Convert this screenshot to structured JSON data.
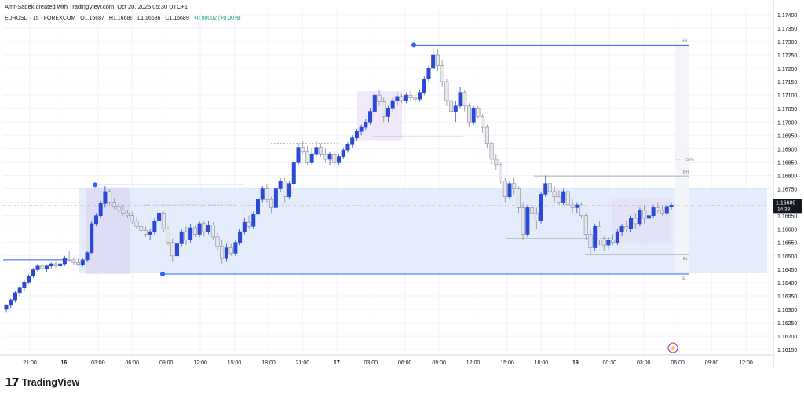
{
  "header": {
    "attribution": "Amr-Sadek created with TradingView.com, Oct 20, 2025 05:30 UTC+1",
    "symbol": "EURUSD · 15 · FOREXCOM",
    "open": "O1.16687",
    "high": "H1.16689",
    "low": "L1.16686",
    "close": "C1.16689",
    "change": "+0.00002 (+0.00%)"
  },
  "brand": {
    "logo": "17",
    "name": "TradingView"
  },
  "price_tag": {
    "price": "1.16689",
    "countdown": "14:33"
  },
  "colors": {
    "up": "#2a4ad6",
    "down": "#b5b8c0",
    "zone": "#dce7fb",
    "level": "#2962ff",
    "grid": "#f0f3fa",
    "text": "#131722",
    "muted": "#787b86",
    "price_tag_bg": "#131722"
  },
  "chart_data": {
    "type": "candlestick",
    "x_ticks": [
      "21:00",
      "16",
      "03:00",
      "06:00",
      "09:00",
      "12:00",
      "15:00",
      "18:00",
      "21:00",
      "17",
      "03:00",
      "06:00",
      "09:00",
      "12:00",
      "15:00",
      "18:00",
      "19",
      "00:30",
      "03:00",
      "06:00",
      "09:00",
      "12:00"
    ],
    "y_ticks": [
      "1.17400",
      "1.17350",
      "1.17300",
      "1.17250",
      "1.17200",
      "1.17150",
      "1.17100",
      "1.17050",
      "1.17000",
      "1.16950",
      "1.16900",
      "1.16850",
      "1.16800",
      "1.16750",
      "1.16700",
      "1.16650",
      "1.16600",
      "1.16550",
      "1.16500",
      "1.16450",
      "1.16400",
      "1.16350",
      "1.16300",
      "1.16250",
      "1.16200",
      "1.16150"
    ],
    "ylim": [
      1.1613,
      1.1742
    ],
    "last_price": 1.16689,
    "zone": {
      "top": 1.16755,
      "bottom": 1.16435
    },
    "levels": [
      {
        "label": "SH",
        "price": 1.17287
      },
      {
        "label": "BH",
        "price": 1.16798
      },
      {
        "label": "SL",
        "price": 1.16432
      },
      {
        "label": "EL",
        "price": 1.16505
      }
    ],
    "annotation": "50%",
    "candles": [
      [
        1.163,
        1.1632,
        1.1629,
        1.16315
      ],
      [
        1.16315,
        1.1634,
        1.16305,
        1.16335
      ],
      [
        1.16335,
        1.1637,
        1.16325,
        1.16362
      ],
      [
        1.16362,
        1.1639,
        1.1635,
        1.1638
      ],
      [
        1.1638,
        1.1641,
        1.1637,
        1.16402
      ],
      [
        1.16402,
        1.1643,
        1.16395,
        1.16425
      ],
      [
        1.16425,
        1.16455,
        1.16418,
        1.16448
      ],
      [
        1.16448,
        1.1647,
        1.1644,
        1.16462
      ],
      [
        1.16462,
        1.16472,
        1.16445,
        1.16452
      ],
      [
        1.16452,
        1.16468,
        1.1644,
        1.16462
      ],
      [
        1.16462,
        1.16475,
        1.1645,
        1.1647
      ],
      [
        1.1647,
        1.1648,
        1.16455,
        1.16462
      ],
      [
        1.16462,
        1.16478,
        1.16455,
        1.1647
      ],
      [
        1.1647,
        1.165,
        1.16462,
        1.16492
      ],
      [
        1.16492,
        1.16518,
        1.16478,
        1.16485
      ],
      [
        1.16485,
        1.16495,
        1.16465,
        1.16475
      ],
      [
        1.16475,
        1.1649,
        1.16462,
        1.16468
      ],
      [
        1.16468,
        1.1649,
        1.1646,
        1.16485
      ],
      [
        1.16485,
        1.1652,
        1.16478,
        1.16512
      ],
      [
        1.16512,
        1.1663,
        1.16505,
        1.1662
      ],
      [
        1.1662,
        1.1666,
        1.1661,
        1.1665
      ],
      [
        1.1665,
        1.16705,
        1.1664,
        1.16695
      ],
      [
        1.16695,
        1.1676,
        1.1668,
        1.1674
      ],
      [
        1.1674,
        1.16748,
        1.1669,
        1.167
      ],
      [
        1.167,
        1.16715,
        1.16675,
        1.16685
      ],
      [
        1.16685,
        1.167,
        1.1666,
        1.1667
      ],
      [
        1.1667,
        1.1669,
        1.1665,
        1.1666
      ],
      [
        1.1666,
        1.16672,
        1.1664,
        1.1665
      ],
      [
        1.1665,
        1.16665,
        1.1662,
        1.1663
      ],
      [
        1.1663,
        1.16645,
        1.166,
        1.1661
      ],
      [
        1.1661,
        1.16625,
        1.16585,
        1.16595
      ],
      [
        1.16595,
        1.1661,
        1.1657,
        1.1658
      ],
      [
        1.1658,
        1.166,
        1.1656,
        1.1659
      ],
      [
        1.1659,
        1.1664,
        1.1658,
        1.1663
      ],
      [
        1.1663,
        1.1667,
        1.1662,
        1.1666
      ],
      [
        1.1666,
        1.16665,
        1.1659,
        1.166
      ],
      [
        1.166,
        1.1661,
        1.1654,
        1.1655
      ],
      [
        1.1655,
        1.16565,
        1.1648,
        1.165
      ],
      [
        1.165,
        1.1656,
        1.1644,
        1.16545
      ],
      [
        1.16545,
        1.166,
        1.16535,
        1.1659
      ],
      [
        1.1659,
        1.1661,
        1.1654,
        1.1656
      ],
      [
        1.1656,
        1.1662,
        1.1655,
        1.16605
      ],
      [
        1.16605,
        1.16615,
        1.1657,
        1.1658
      ],
      [
        1.1658,
        1.1663,
        1.1657,
        1.1662
      ],
      [
        1.1662,
        1.16628,
        1.16575,
        1.1659
      ],
      [
        1.1659,
        1.1663,
        1.1658,
        1.16615
      ],
      [
        1.16615,
        1.16625,
        1.1656,
        1.1657
      ],
      [
        1.1657,
        1.16585,
        1.1652,
        1.16535
      ],
      [
        1.16535,
        1.1656,
        1.1647,
        1.1649
      ],
      [
        1.1649,
        1.16545,
        1.1648,
        1.1653
      ],
      [
        1.1653,
        1.16545,
        1.165,
        1.1651
      ],
      [
        1.1651,
        1.1656,
        1.165,
        1.1655
      ],
      [
        1.1655,
        1.166,
        1.1654,
        1.1659
      ],
      [
        1.1659,
        1.1664,
        1.1658,
        1.16625
      ],
      [
        1.16625,
        1.1665,
        1.166,
        1.1661
      ],
      [
        1.1661,
        1.16665,
        1.166,
        1.16655
      ],
      [
        1.16655,
        1.1672,
        1.16645,
        1.1671
      ],
      [
        1.1671,
        1.1676,
        1.167,
        1.1675
      ],
      [
        1.1675,
        1.1677,
        1.167,
        1.1671
      ],
      [
        1.1671,
        1.1672,
        1.1666,
        1.1668
      ],
      [
        1.1668,
        1.1676,
        1.1667,
        1.1675
      ],
      [
        1.1675,
        1.1679,
        1.1674,
        1.1678
      ],
      [
        1.1678,
        1.1679,
        1.167,
        1.1672
      ],
      [
        1.1672,
        1.1678,
        1.1671,
        1.1677
      ],
      [
        1.1677,
        1.1686,
        1.1676,
        1.1685
      ],
      [
        1.1685,
        1.1692,
        1.1684,
        1.16905
      ],
      [
        1.16905,
        1.1693,
        1.1688,
        1.1689
      ],
      [
        1.1689,
        1.1691,
        1.1684,
        1.1685
      ],
      [
        1.1685,
        1.169,
        1.1684,
        1.1688
      ],
      [
        1.1688,
        1.1693,
        1.1687,
        1.16905
      ],
      [
        1.16905,
        1.1692,
        1.1687,
        1.1688
      ],
      [
        1.1688,
        1.169,
        1.1685,
        1.1686
      ],
      [
        1.1686,
        1.1689,
        1.1684,
        1.1688
      ],
      [
        1.1688,
        1.16895,
        1.1683,
        1.1685
      ],
      [
        1.1685,
        1.1688,
        1.1684,
        1.1687
      ],
      [
        1.1687,
        1.16905,
        1.1686,
        1.16895
      ],
      [
        1.16895,
        1.16925,
        1.16885,
        1.16915
      ],
      [
        1.16915,
        1.1695,
        1.16905,
        1.1694
      ],
      [
        1.1694,
        1.16975,
        1.1693,
        1.16965
      ],
      [
        1.16965,
        1.1699,
        1.1695,
        1.1698
      ],
      [
        1.1698,
        1.1701,
        1.1697,
        1.17
      ],
      [
        1.17,
        1.1705,
        1.1699,
        1.1704
      ],
      [
        1.1704,
        1.1711,
        1.1703,
        1.171
      ],
      [
        1.171,
        1.1712,
        1.1706,
        1.17075
      ],
      [
        1.17075,
        1.1709,
        1.17,
        1.1702
      ],
      [
        1.1702,
        1.1706,
        1.17,
        1.1705
      ],
      [
        1.1705,
        1.1709,
        1.1704,
        1.1708
      ],
      [
        1.1708,
        1.1711,
        1.1706,
        1.17095
      ],
      [
        1.17095,
        1.17105,
        1.1707,
        1.1708
      ],
      [
        1.1708,
        1.1711,
        1.1707,
        1.171
      ],
      [
        1.171,
        1.1712,
        1.1708,
        1.1709
      ],
      [
        1.1709,
        1.171,
        1.1707,
        1.17085
      ],
      [
        1.17085,
        1.1712,
        1.17075,
        1.1711
      ],
      [
        1.1711,
        1.1717,
        1.171,
        1.1716
      ],
      [
        1.1716,
        1.1721,
        1.1715,
        1.172
      ],
      [
        1.172,
        1.17287,
        1.1719,
        1.1725
      ],
      [
        1.1725,
        1.1727,
        1.1719,
        1.1721
      ],
      [
        1.1721,
        1.1723,
        1.1713,
        1.1715
      ],
      [
        1.1715,
        1.1716,
        1.1706,
        1.1708
      ],
      [
        1.1708,
        1.1712,
        1.1702,
        1.1704
      ],
      [
        1.1704,
        1.1708,
        1.17,
        1.1706
      ],
      [
        1.1706,
        1.1713,
        1.1705,
        1.1711
      ],
      [
        1.1711,
        1.1712,
        1.1704,
        1.1706
      ],
      [
        1.1706,
        1.1707,
        1.1698,
        1.17
      ],
      [
        1.17,
        1.1706,
        1.1699,
        1.1705
      ],
      [
        1.1705,
        1.1706,
        1.1701,
        1.1702
      ],
      [
        1.1702,
        1.1703,
        1.1696,
        1.1698
      ],
      [
        1.1698,
        1.1699,
        1.169,
        1.1692
      ],
      [
        1.1692,
        1.1693,
        1.1684,
        1.1686
      ],
      [
        1.1686,
        1.1688,
        1.1682,
        1.1684
      ],
      [
        1.1684,
        1.1685,
        1.1677,
        1.1678
      ],
      [
        1.1678,
        1.1679,
        1.167,
        1.1672
      ],
      [
        1.1672,
        1.1678,
        1.1671,
        1.1677
      ],
      [
        1.1677,
        1.1679,
        1.1673,
        1.1675
      ],
      [
        1.1675,
        1.1676,
        1.1666,
        1.1668
      ],
      [
        1.1668,
        1.167,
        1.1656,
        1.1658
      ],
      [
        1.1658,
        1.1669,
        1.1657,
        1.1668
      ],
      [
        1.1668,
        1.167,
        1.1664,
        1.1666
      ],
      [
        1.1666,
        1.1668,
        1.166,
        1.1663
      ],
      [
        1.1663,
        1.1674,
        1.1662,
        1.1673
      ],
      [
        1.1673,
        1.168,
        1.1672,
        1.1677
      ],
      [
        1.1677,
        1.1679,
        1.1672,
        1.1674
      ],
      [
        1.1674,
        1.1676,
        1.167,
        1.1672
      ],
      [
        1.1672,
        1.16745,
        1.1669,
        1.167
      ],
      [
        1.167,
        1.1675,
        1.1669,
        1.1674
      ],
      [
        1.1674,
        1.16755,
        1.1668,
        1.1669
      ],
      [
        1.1669,
        1.1671,
        1.1666,
        1.1668
      ],
      [
        1.1668,
        1.167,
        1.1666,
        1.1669
      ],
      [
        1.1669,
        1.167,
        1.1664,
        1.1665
      ],
      [
        1.1665,
        1.1666,
        1.1656,
        1.1658
      ],
      [
        1.1658,
        1.166,
        1.16505,
        1.1653
      ],
      [
        1.1653,
        1.1662,
        1.1652,
        1.1661
      ],
      [
        1.1661,
        1.1663,
        1.1654,
        1.1656
      ],
      [
        1.1656,
        1.16575,
        1.1652,
        1.1654
      ],
      [
        1.1654,
        1.1657,
        1.16525,
        1.1656
      ],
      [
        1.1656,
        1.1658,
        1.1654,
        1.1655
      ],
      [
        1.1655,
        1.166,
        1.1654,
        1.1659
      ],
      [
        1.1659,
        1.1662,
        1.16575,
        1.1661
      ],
      [
        1.1661,
        1.1663,
        1.1659,
        1.166
      ],
      [
        1.166,
        1.1665,
        1.1659,
        1.1664
      ],
      [
        1.1664,
        1.1666,
        1.166,
        1.1662
      ],
      [
        1.1662,
        1.1668,
        1.1661,
        1.1667
      ],
      [
        1.1667,
        1.1669,
        1.1662,
        1.1664
      ],
      [
        1.1664,
        1.1666,
        1.166,
        1.1665
      ],
      [
        1.1665,
        1.1669,
        1.1664,
        1.1668
      ],
      [
        1.1668,
        1.167,
        1.1666,
        1.1667
      ],
      [
        1.1667,
        1.1669,
        1.1665,
        1.1666
      ],
      [
        1.1666,
        1.1669,
        1.1665,
        1.16685
      ],
      [
        1.16685,
        1.167,
        1.1667,
        1.16689
      ]
    ]
  }
}
